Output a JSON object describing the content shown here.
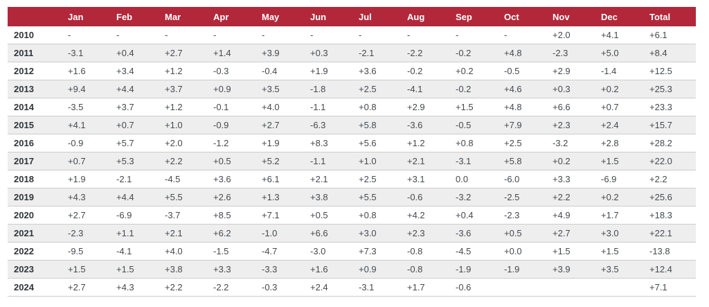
{
  "colors": {
    "header_bg": "#b2283a",
    "header_text": "#ffffff",
    "alt_row_bg": "#eeeeee",
    "row_border": "#cccccc",
    "value_text": "#424a50",
    "year_text": "#2f363b"
  },
  "chart_data": {
    "type": "table",
    "columns": [
      "",
      "Jan",
      "Feb",
      "Mar",
      "Apr",
      "May",
      "Jun",
      "Jul",
      "Aug",
      "Sep",
      "Oct",
      "Nov",
      "Dec",
      "Total"
    ],
    "rows": [
      {
        "year": "2010",
        "values": [
          "-",
          "-",
          "-",
          "-",
          "-",
          "-",
          "-",
          "-",
          "-",
          "-",
          "+2.0",
          "+4.1",
          "+6.1"
        ]
      },
      {
        "year": "2011",
        "values": [
          "-3.1",
          "+0.4",
          "+2.7",
          "+1.4",
          "+3.9",
          "+0.3",
          "-2.1",
          "-2.2",
          "-0.2",
          "+4.8",
          "-2.3",
          "+5.0",
          "+8.4"
        ]
      },
      {
        "year": "2012",
        "values": [
          "+1.6",
          "+3.4",
          "+1.2",
          "-0.3",
          "-0.4",
          "+1.9",
          "+3.6",
          "-0.2",
          "+0.2",
          "-0.5",
          "+2.9",
          "-1.4",
          "+12.5"
        ]
      },
      {
        "year": "2013",
        "values": [
          "+9.4",
          "+4.4",
          "+3.7",
          "+0.9",
          "+3.5",
          "-1.8",
          "+2.5",
          "-4.1",
          "-0.2",
          "+4.6",
          "+0.3",
          "+0.2",
          "+25.3"
        ]
      },
      {
        "year": "2014",
        "values": [
          "-3.5",
          "+3.7",
          "+1.2",
          "-0.1",
          "+4.0",
          "-1.1",
          "+0.8",
          "+2.9",
          "+1.5",
          "+4.8",
          "+6.6",
          "+0.7",
          "+23.3"
        ]
      },
      {
        "year": "2015",
        "values": [
          "+4.1",
          "+0.7",
          "+1.0",
          "-0.9",
          "+2.7",
          "-6.3",
          "+5.8",
          "-3.6",
          "-0.5",
          "+7.9",
          "+2.3",
          "+2.4",
          "+15.7"
        ]
      },
      {
        "year": "2016",
        "values": [
          "-0.9",
          "+5.7",
          "+2.0",
          "-1.2",
          "+1.9",
          "+8.3",
          "+5.6",
          "+1.2",
          "+0.8",
          "+2.5",
          "-3.2",
          "+2.8",
          "+28.2"
        ]
      },
      {
        "year": "2017",
        "values": [
          "+0.7",
          "+5.3",
          "+2.2",
          "+0.5",
          "+5.2",
          "-1.1",
          "+1.0",
          "+2.1",
          "-3.1",
          "+5.8",
          "+0.2",
          "+1.5",
          "+22.0"
        ]
      },
      {
        "year": "2018",
        "values": [
          "+1.9",
          "-2.1",
          "-4.5",
          "+3.6",
          "+6.1",
          "+2.1",
          "+2.5",
          "+3.1",
          "0.0",
          "-6.0",
          "+3.3",
          "-6.9",
          "+2.2"
        ]
      },
      {
        "year": "2019",
        "values": [
          "+4.3",
          "+4.4",
          "+5.5",
          "+2.6",
          "+1.3",
          "+3.8",
          "+5.5",
          "-0.6",
          "-3.2",
          "-2.5",
          "+2.2",
          "+0.2",
          "+25.6"
        ]
      },
      {
        "year": "2020",
        "values": [
          "+2.7",
          "-6.9",
          "-3.7",
          "+8.5",
          "+7.1",
          "+0.5",
          "+0.8",
          "+4.2",
          "+0.4",
          "-2.3",
          "+4.9",
          "+1.7",
          "+18.3"
        ]
      },
      {
        "year": "2021",
        "values": [
          "-2.3",
          "+1.1",
          "+2.1",
          "+6.2",
          "-1.0",
          "+6.6",
          "+3.0",
          "+2.3",
          "-3.6",
          "+0.5",
          "+2.7",
          "+3.0",
          "+22.1"
        ]
      },
      {
        "year": "2022",
        "values": [
          "-9.5",
          "-4.1",
          "+4.0",
          "-1.5",
          "-4.7",
          "-3.0",
          "+7.3",
          "-0.8",
          "-4.5",
          "+0.0",
          "+1.5",
          "+1.5",
          "-13.8"
        ]
      },
      {
        "year": "2023",
        "values": [
          "+1.5",
          "+1.5",
          "+3.8",
          "+3.3",
          "-3.3",
          "+1.6",
          "+0.9",
          "-0.8",
          "-1.9",
          "-1.9",
          "+3.9",
          "+3.5",
          "+12.4"
        ]
      },
      {
        "year": "2024",
        "values": [
          "+2.7",
          "+4.3",
          "+2.2",
          "-2.2",
          "-0.3",
          "+2.4",
          "-3.1",
          "+1.7",
          "-0.6",
          "",
          "",
          "",
          "+7.1"
        ]
      }
    ]
  }
}
